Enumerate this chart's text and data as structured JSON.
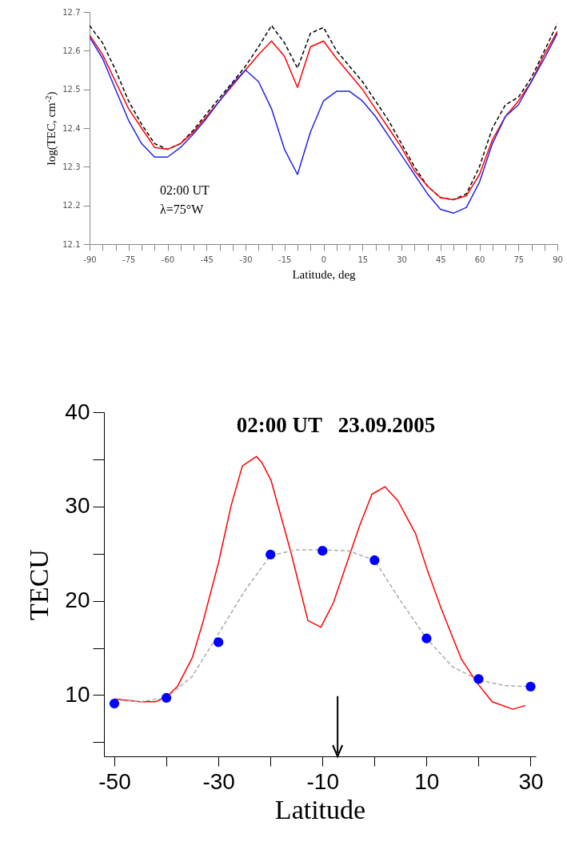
{
  "chart_data": [
    {
      "type": "line",
      "xlabel": "Latitude, deg",
      "ylabel": "log(TEC, cm$^{-2}$)",
      "annotations": [
        "02:00 UT",
        "λ=75°W"
      ],
      "x": [
        -90,
        -85,
        -80,
        -75,
        -70,
        -65,
        -60,
        -55,
        -50,
        -45,
        -40,
        -35,
        -30,
        -25,
        -20,
        -15,
        -10,
        -5,
        0,
        5,
        10,
        15,
        20,
        25,
        30,
        35,
        40,
        45,
        50,
        55,
        60,
        65,
        70,
        75,
        80,
        85,
        90
      ],
      "xlim": [
        -90,
        90
      ],
      "xticks": [
        -90,
        {
          "value": -85,
          "label": null
        },
        {
          "value": -80,
          "label": null
        },
        -75,
        {
          "value": -70,
          "label": null
        },
        {
          "value": -65,
          "label": null
        },
        -60,
        {
          "value": -55,
          "label": null
        },
        {
          "value": -50,
          "label": null
        },
        -45,
        {
          "value": -40,
          "label": null
        },
        {
          "value": -35,
          "label": null
        },
        -30,
        {
          "value": -25,
          "label": null
        },
        {
          "value": -20,
          "label": null
        },
        -15,
        {
          "value": -10,
          "label": null
        },
        {
          "value": -5,
          "label": null
        },
        0,
        {
          "value": 5,
          "label": null
        },
        {
          "value": 10,
          "label": null
        },
        15,
        {
          "value": 20,
          "label": null
        },
        {
          "value": 25,
          "label": null
        },
        30,
        {
          "value": 35,
          "label": null
        },
        {
          "value": 40,
          "label": null
        },
        45,
        {
          "value": 50,
          "label": null
        },
        {
          "value": 55,
          "label": null
        },
        60,
        {
          "value": 65,
          "label": null
        },
        {
          "value": 70,
          "label": null
        },
        75,
        {
          "value": 80,
          "label": null
        },
        {
          "value": 85,
          "label": null
        },
        90
      ],
      "ylim": [
        12.1,
        12.7
      ],
      "yticks": [
        12.1,
        12.2,
        12.3,
        12.4,
        12.5,
        12.6,
        12.7
      ],
      "series": [
        {
          "color": "#000000",
          "line_style": "dashed",
          "values": [
            12.665,
            12.62,
            12.55,
            12.47,
            12.41,
            12.36,
            12.345,
            12.36,
            12.395,
            12.437,
            12.478,
            12.518,
            12.56,
            12.61,
            12.665,
            12.62,
            12.555,
            12.645,
            12.66,
            12.6,
            12.56,
            12.52,
            12.47,
            12.42,
            12.36,
            12.3,
            12.25,
            12.22,
            12.215,
            12.23,
            12.3,
            12.4,
            12.46,
            12.48,
            12.53,
            12.6,
            12.67
          ]
        },
        {
          "color": "#ff0000",
          "values": [
            12.64,
            12.59,
            12.52,
            12.45,
            12.4,
            12.35,
            12.345,
            12.36,
            12.39,
            12.43,
            12.47,
            12.51,
            12.55,
            12.59,
            12.625,
            12.585,
            12.505,
            12.61,
            12.625,
            12.58,
            12.54,
            12.5,
            12.45,
            12.4,
            12.35,
            12.29,
            12.25,
            12.22,
            12.215,
            12.225,
            12.28,
            12.37,
            12.43,
            12.47,
            12.52,
            12.59,
            12.65
          ]
        },
        {
          "color": "#2222ee",
          "values": [
            12.635,
            12.58,
            12.5,
            12.42,
            12.36,
            12.325,
            12.325,
            12.35,
            12.385,
            12.425,
            12.47,
            12.515,
            12.55,
            12.52,
            12.45,
            12.345,
            12.28,
            12.39,
            12.47,
            12.495,
            12.495,
            12.47,
            12.43,
            12.38,
            12.33,
            12.28,
            12.23,
            12.19,
            12.18,
            12.195,
            12.26,
            12.36,
            12.43,
            12.46,
            12.52,
            12.58,
            12.645
          ]
        }
      ]
    },
    {
      "type": "line",
      "title": "02:00 UT   23.09.2005",
      "xlabel": "Latitude",
      "ylabel": "TECU",
      "xlim": [
        -52,
        31
      ],
      "xticks": [
        -50,
        {
          "value": -40,
          "label": null
        },
        -30,
        {
          "value": -20,
          "label": null
        },
        -10,
        {
          "value": 0,
          "label": null
        },
        10,
        {
          "value": 20,
          "label": null
        },
        30
      ],
      "ylim": [
        3.5,
        40
      ],
      "yticks": [
        {
          "value": 5,
          "label": null
        },
        10,
        {
          "value": 15,
          "label": null
        },
        20,
        {
          "value": 25,
          "label": null
        },
        30,
        {
          "value": 35,
          "label": null
        },
        40
      ],
      "series": [
        {
          "color": "#ff0000",
          "x": [
            -50,
            -45,
            -42,
            -40,
            -37.9,
            -35,
            -33,
            -30,
            -27.6,
            -25.4,
            -22.7,
            -21.7,
            -19.9,
            -16,
            -12.8,
            -10.3,
            -7.9,
            -5,
            -2.9,
            -0.5,
            2,
            4.5,
            7.9,
            10,
            12.8,
            16.7,
            19.7,
            22.6,
            26.6,
            29
          ],
          "values": [
            9.6,
            9.3,
            9.3,
            9.8,
            10.9,
            14,
            17.7,
            24,
            30,
            34.3,
            35.3,
            34.7,
            32.8,
            25,
            17.9,
            17.2,
            19.8,
            24.5,
            27.9,
            31.3,
            32.1,
            30.6,
            27.1,
            23.5,
            19.2,
            13.8,
            11.3,
            9.3,
            8.5,
            8.9
          ]
        },
        {
          "color": "#aaaaaa",
          "line_style": "dashed",
          "x": [
            -50,
            -45,
            -40,
            -35,
            -30,
            -25,
            -20,
            -15,
            -10,
            -5,
            0,
            5,
            10,
            15,
            20,
            25,
            30
          ],
          "values": [
            9.5,
            9.3,
            9.7,
            12,
            16.5,
            21,
            24.8,
            25.4,
            25.4,
            25.3,
            24.3,
            20,
            16,
            13,
            11.6,
            11,
            10.9
          ]
        },
        {
          "type": "scatter",
          "marker": "circle",
          "color": "#0000ff",
          "x": [
            -50,
            -40,
            -30,
            -20,
            -10,
            0,
            10,
            20,
            30
          ],
          "values": [
            9.1,
            9.7,
            15.6,
            24.9,
            25.3,
            24.3,
            16,
            11.7,
            10.9
          ]
        }
      ]
    }
  ]
}
